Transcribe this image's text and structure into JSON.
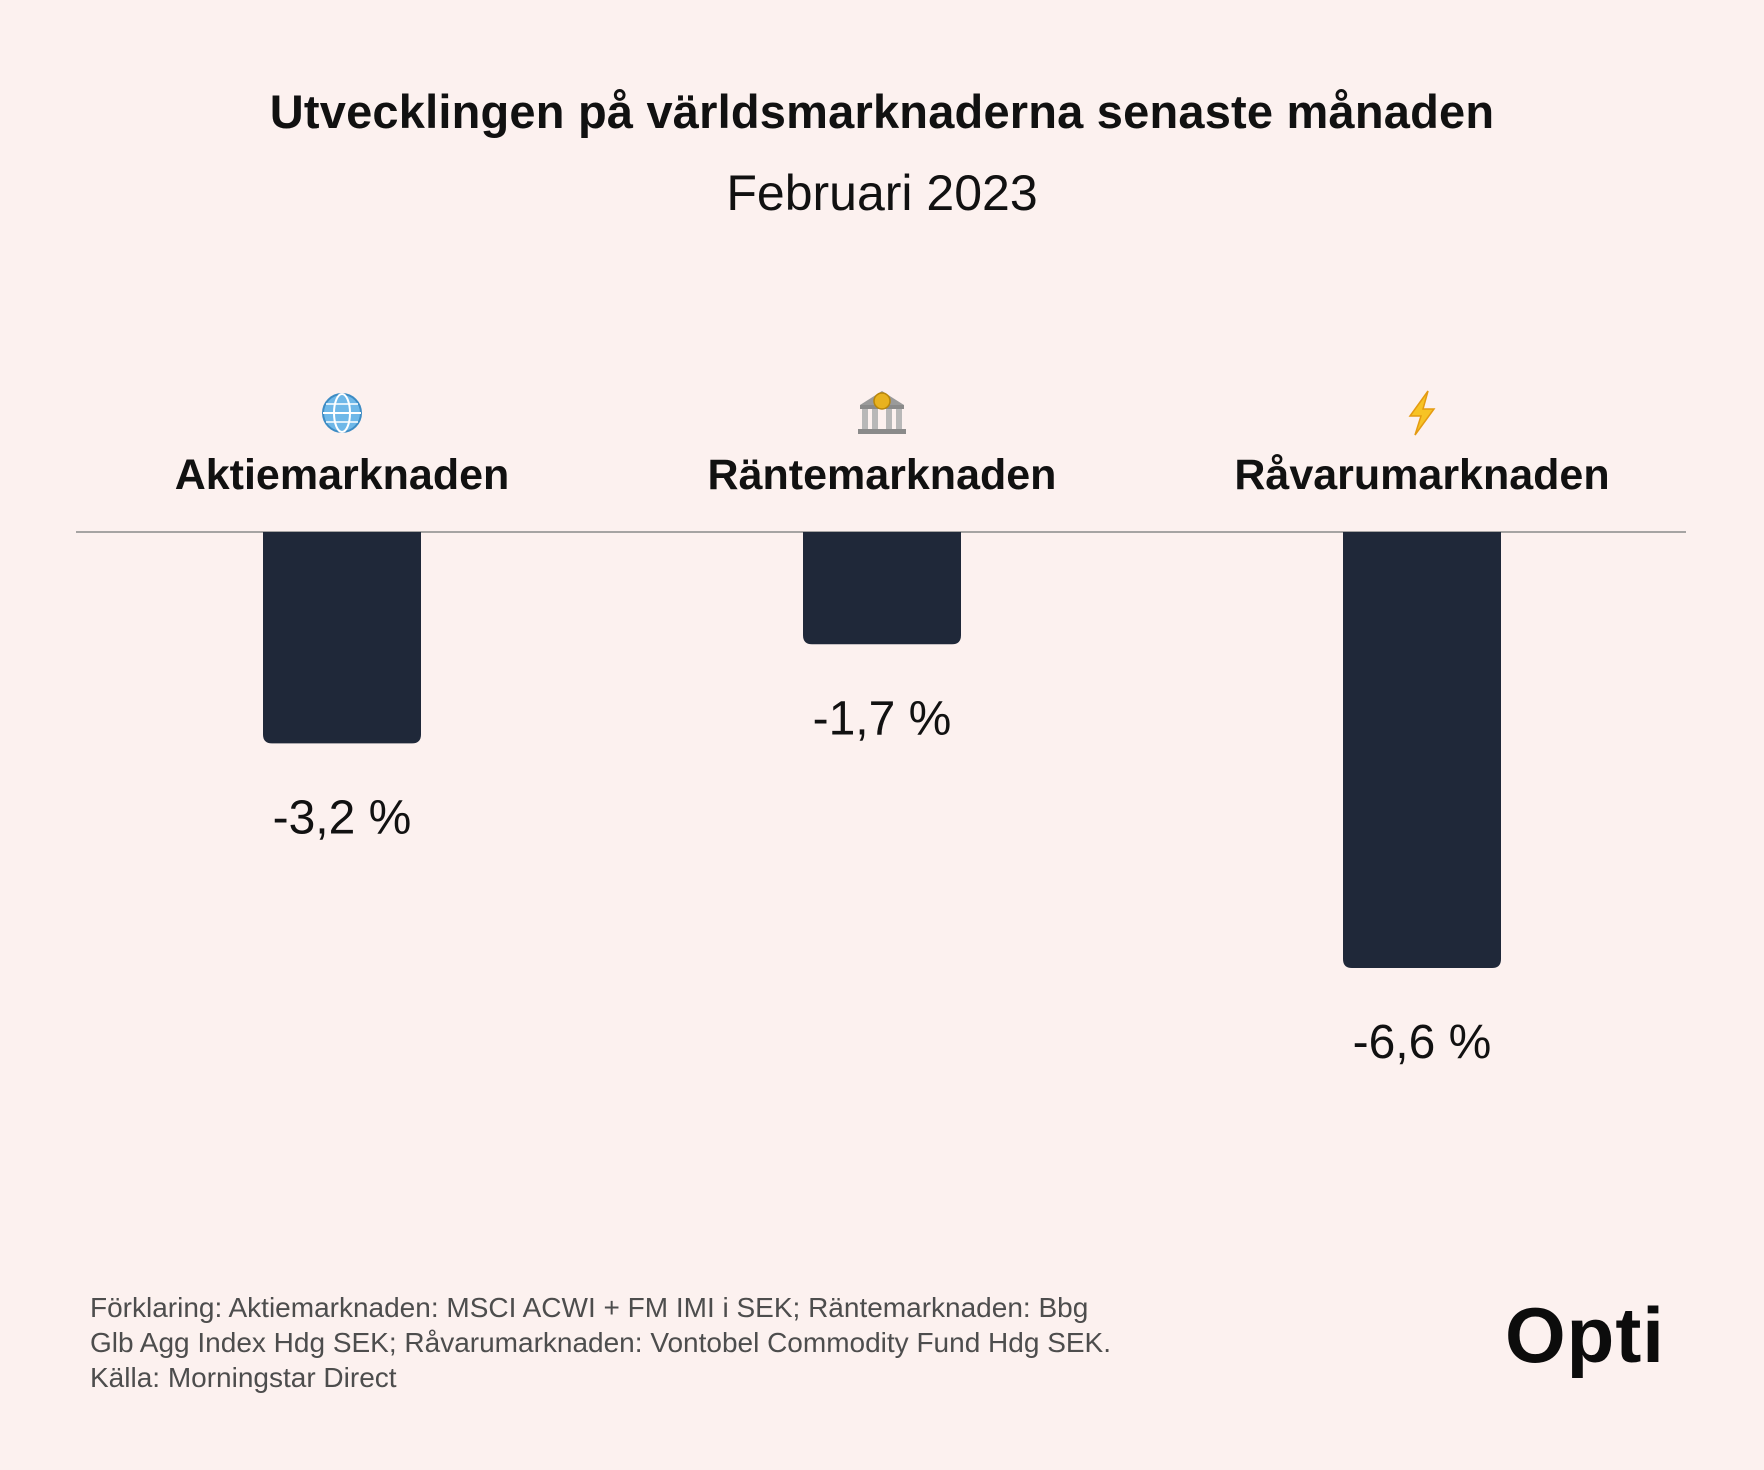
{
  "title": "Utvecklingen på världsmarknaderna senaste månaden",
  "subtitle": "Februari 2023",
  "chart_data": {
    "type": "bar",
    "categories": [
      "Aktiemarknaden",
      "Räntemarknaden",
      "Råvarumarknaden"
    ],
    "category_icons": [
      "globe-icon",
      "bank-icon",
      "lightning-icon"
    ],
    "values": [
      -3.2,
      -1.7,
      -6.6
    ],
    "value_labels": [
      "-3,2 %",
      "-1,7 %",
      "-6,6 %"
    ],
    "ylim": [
      -6.6,
      0
    ],
    "bar_color": "#1f2839",
    "grid": false,
    "legend": "none"
  },
  "footnote": {
    "lines": [
      "Förklaring: Aktiemarknaden: MSCI ACWI + FM IMI i SEK; Räntemarknaden: Bbg",
      "Glb Agg Index Hdg SEK; Råvarumarknaden: Vontobel Commodity Fund Hdg SEK.",
      "Källa: Morningstar Direct"
    ]
  },
  "logo": {
    "text": "Opti"
  }
}
